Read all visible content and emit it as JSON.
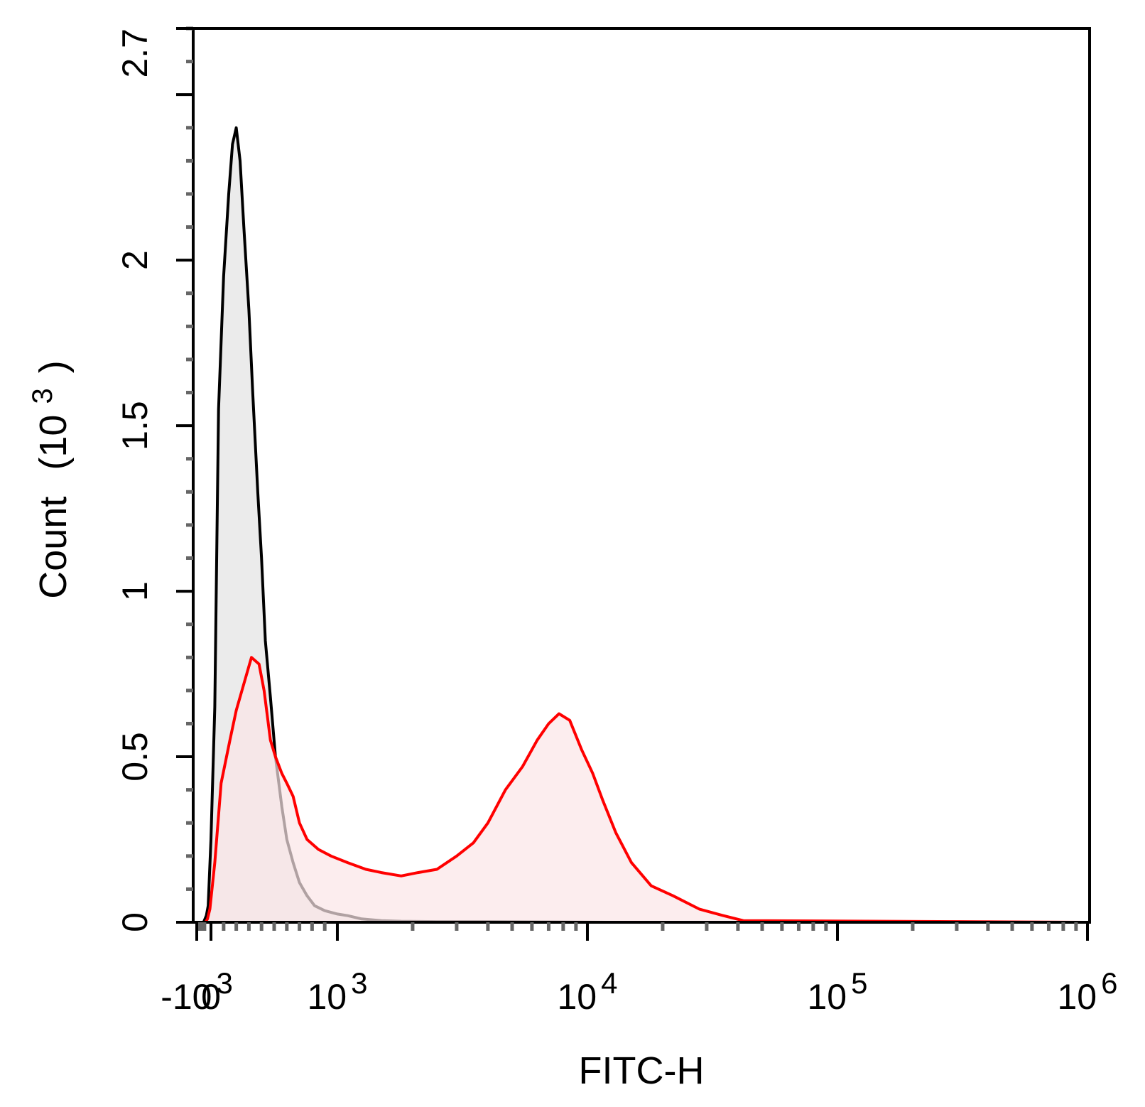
{
  "chart_data": {
    "type": "area",
    "xlabel": "FITC-H",
    "ylabel": "Count",
    "ylabel_unit": "(10",
    "ylabel_unit_exp": "3",
    "ylabel_unit_close": ")",
    "x_scale": "biexponential",
    "xlim": [
      -1300,
      1000000
    ],
    "ylim": [
      0,
      2.7
    ],
    "x_ticks": [
      {
        "value": -1000,
        "base": "-10",
        "exp": "3"
      },
      {
        "value": 0,
        "base": "0",
        "exp": ""
      },
      {
        "value": 1000,
        "base": "10",
        "exp": "3"
      },
      {
        "value": 10000,
        "base": "10",
        "exp": "4"
      },
      {
        "value": 100000,
        "base": "10",
        "exp": "5"
      },
      {
        "value": 1000000,
        "base": "10",
        "exp": "6"
      }
    ],
    "y_ticks": [
      {
        "value": 0,
        "label": "0"
      },
      {
        "value": 0.5,
        "label": "0.5"
      },
      {
        "value": 1,
        "label": "1"
      },
      {
        "value": 1.5,
        "label": "1.5"
      },
      {
        "value": 2,
        "label": "2"
      },
      {
        "value": 2.7,
        "label": "2.7"
      }
    ],
    "grid": false,
    "series": [
      {
        "color": "#000000",
        "fill": "#ebebeb",
        "x": [
          -1300,
          -250,
          -120,
          -60,
          0,
          30,
          60,
          100,
          140,
          170,
          200,
          230,
          260,
          300,
          330,
          370,
          400,
          430,
          470,
          510,
          560,
          600,
          650,
          700,
          760,
          820,
          900,
          1000,
          1100,
          1250,
          1500,
          1800,
          2500,
          4000,
          7000,
          12000,
          30000,
          100000,
          1000000
        ],
        "y": [
          0,
          0,
          0.02,
          0.05,
          0.25,
          0.65,
          1.55,
          1.95,
          2.2,
          2.35,
          2.4,
          2.3,
          2.1,
          1.85,
          1.6,
          1.3,
          1.1,
          0.85,
          0.68,
          0.5,
          0.35,
          0.25,
          0.18,
          0.12,
          0.08,
          0.05,
          0.035,
          0.025,
          0.02,
          0.01,
          0.005,
          0.003,
          0.002,
          0.002,
          0.001,
          0,
          0,
          0,
          0
        ]
      },
      {
        "color": "#ff0000",
        "fill": "#fbe6e7",
        "x": [
          -1300,
          -150,
          -80,
          -20,
          30,
          80,
          150,
          200,
          260,
          320,
          380,
          420,
          470,
          510,
          560,
          600,
          650,
          700,
          760,
          850,
          950,
          1100,
          1300,
          1500,
          1800,
          2100,
          2500,
          3000,
          3500,
          4000,
          4700,
          5500,
          6300,
          7000,
          7700,
          8500,
          9500,
          10500,
          11500,
          13000,
          15000,
          18000,
          22000,
          28000,
          35000,
          42000,
          1000000
        ],
        "y": [
          0,
          0,
          0.01,
          0.04,
          0.18,
          0.42,
          0.55,
          0.64,
          0.72,
          0.8,
          0.78,
          0.7,
          0.55,
          0.5,
          0.45,
          0.42,
          0.38,
          0.3,
          0.25,
          0.22,
          0.2,
          0.18,
          0.16,
          0.15,
          0.14,
          0.15,
          0.16,
          0.2,
          0.24,
          0.3,
          0.4,
          0.47,
          0.55,
          0.6,
          0.63,
          0.61,
          0.52,
          0.45,
          0.37,
          0.27,
          0.18,
          0.11,
          0.08,
          0.04,
          0.02,
          0.005,
          0
        ]
      }
    ]
  }
}
